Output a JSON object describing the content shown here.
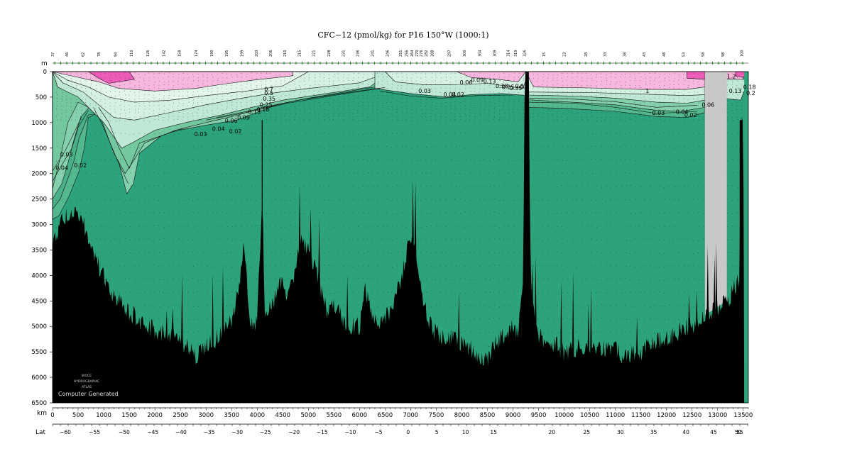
{
  "chart_data": {
    "type": "heatmap",
    "title": "CFC−12 (pmol/kg) for P16 150°W (1000:1)",
    "depth_axis": {
      "label": "m",
      "range": [
        0,
        6500
      ],
      "ticks": [
        "0",
        "500",
        "1000",
        "1500",
        "2000",
        "2500",
        "3000",
        "3500",
        "4000",
        "4500",
        "5000",
        "5500",
        "6000",
        "6500"
      ]
    },
    "distance_axis": {
      "label": "km",
      "range": [
        0,
        13600
      ],
      "ticks": [
        "0",
        "500",
        "1000",
        "1500",
        "2000",
        "2500",
        "3000",
        "3500",
        "4000",
        "4500",
        "5000",
        "5500",
        "6000",
        "6500",
        "7000",
        "7500",
        "8000",
        "8500",
        "9000",
        "9500",
        "10000",
        "10500",
        "11000",
        "11500",
        "12000",
        "12500",
        "13000",
        "13500"
      ]
    },
    "latitude_axis": {
      "label": "Lat",
      "ticks": [
        {
          "label": "−60",
          "km": 250
        },
        {
          "label": "−55",
          "km": 820
        },
        {
          "label": "−50",
          "km": 1400
        },
        {
          "label": "−45",
          "km": 1960
        },
        {
          "label": "−40",
          "km": 2510
        },
        {
          "label": "−35",
          "km": 3060
        },
        {
          "label": "−30",
          "km": 3610
        },
        {
          "label": "−25",
          "km": 4160
        },
        {
          "label": "−20",
          "km": 4720
        },
        {
          "label": "−15",
          "km": 5270
        },
        {
          "label": "−10",
          "km": 5820
        },
        {
          "label": "−5",
          "km": 6370
        },
        {
          "label": "0",
          "km": 6950
        },
        {
          "label": "5",
          "km": 7510
        },
        {
          "label": "10",
          "km": 8070
        },
        {
          "label": "15",
          "km": 8620
        },
        {
          "label": "20",
          "km": 9760
        },
        {
          "label": "25",
          "km": 10440
        },
        {
          "label": "30",
          "km": 11100
        },
        {
          "label": "35",
          "km": 11750
        },
        {
          "label": "40",
          "km": 12380
        },
        {
          "label": "45",
          "km": 12920
        },
        {
          "label": "50",
          "km": 13400
        },
        {
          "label": "55",
          "km": 14160
        }
      ]
    },
    "station_labels": [
      {
        "label": "37",
        "km": 0
      },
      {
        "label": "46",
        "km": 280
      },
      {
        "label": "62",
        "km": 590
      },
      {
        "label": "78",
        "km": 900
      },
      {
        "label": "94",
        "km": 1230
      },
      {
        "label": "110",
        "km": 1540
      },
      {
        "label": "126",
        "km": 1860
      },
      {
        "label": "142",
        "km": 2170
      },
      {
        "label": "158",
        "km": 2480
      },
      {
        "label": "174",
        "km": 2800
      },
      {
        "label": "190",
        "km": 3110
      },
      {
        "label": "195",
        "km": 3400
      },
      {
        "label": "199",
        "km": 3700
      },
      {
        "label": "203",
        "km": 3980
      },
      {
        "label": "206",
        "km": 4260
      },
      {
        "label": "210",
        "km": 4540
      },
      {
        "label": "215",
        "km": 4820
      },
      {
        "label": "221",
        "km": 5100
      },
      {
        "label": "228",
        "km": 5400
      },
      {
        "label": "231",
        "km": 5680
      },
      {
        "label": "236",
        "km": 5960
      },
      {
        "label": "241",
        "km": 6250
      },
      {
        "label": "246",
        "km": 6540
      },
      {
        "label": "251",
        "km": 6800
      },
      {
        "label": "256",
        "km": 6920
      },
      {
        "label": "264",
        "km": 7020
      },
      {
        "label": "270",
        "km": 7120
      },
      {
        "label": "276",
        "km": 7200
      },
      {
        "label": "282",
        "km": 7300
      },
      {
        "label": "288",
        "km": 7420
      },
      {
        "label": "297",
        "km": 7750
      },
      {
        "label": "300",
        "km": 8050
      },
      {
        "label": "304",
        "km": 8350
      },
      {
        "label": "309",
        "km": 8640
      },
      {
        "label": "314",
        "km": 8900
      },
      {
        "label": "319",
        "km": 9050
      },
      {
        "label": "326",
        "km": 9220
      },
      {
        "label": "15",
        "km": 9600
      },
      {
        "label": "23",
        "km": 10000
      },
      {
        "label": "28",
        "km": 10420
      },
      {
        "label": "33",
        "km": 10800
      },
      {
        "label": "38",
        "km": 11180
      },
      {
        "label": "43",
        "km": 11560
      },
      {
        "label": "48",
        "km": 11950
      },
      {
        "label": "53",
        "km": 12330
      },
      {
        "label": "58",
        "km": 12710
      },
      {
        "label": "98",
        "km": 13100
      },
      {
        "label": "100",
        "km": 13470
      }
    ],
    "contour_labels": [
      {
        "label": "0.04",
        "km": 60,
        "depth": 1930
      },
      {
        "label": "0.03",
        "km": 150,
        "depth": 1660
      },
      {
        "label": "0.02",
        "km": 420,
        "depth": 1880
      },
      {
        "label": "0.03",
        "km": 2770,
        "depth": 1270
      },
      {
        "label": "0.04",
        "km": 3120,
        "depth": 1160
      },
      {
        "label": "0.06",
        "km": 3370,
        "depth": 1000
      },
      {
        "label": "0.09",
        "km": 3610,
        "depth": 940
      },
      {
        "label": "0.13",
        "km": 3820,
        "depth": 830
      },
      {
        "label": "0.18",
        "km": 3990,
        "depth": 780
      },
      {
        "label": "0.25",
        "km": 4050,
        "depth": 690
      },
      {
        "label": "0.35",
        "km": 4110,
        "depth": 570
      },
      {
        "label": "0.5",
        "km": 4140,
        "depth": 460
      },
      {
        "label": "0.7",
        "km": 4140,
        "depth": 380
      },
      {
        "label": "0.02",
        "km": 3450,
        "depth": 1210
      },
      {
        "label": "0.03",
        "km": 7150,
        "depth": 420
      },
      {
        "label": "0.04",
        "km": 7640,
        "depth": 490
      },
      {
        "label": "0.02",
        "km": 7800,
        "depth": 490
      },
      {
        "label": "0.06",
        "km": 7960,
        "depth": 250
      },
      {
        "label": "0.09",
        "km": 8180,
        "depth": 200
      },
      {
        "label": "0.13",
        "km": 8420,
        "depth": 230
      },
      {
        "label": "0.18",
        "km": 8660,
        "depth": 320
      },
      {
        "label": "0.25",
        "km": 8780,
        "depth": 340
      },
      {
        "label": "0.35",
        "km": 8930,
        "depth": 360
      },
      {
        "label": "0.5",
        "km": 9040,
        "depth": 330
      },
      {
        "label": "0.7",
        "km": 9140,
        "depth": 330
      },
      {
        "label": "1",
        "km": 11590,
        "depth": 420
      },
      {
        "label": "0.03",
        "km": 11720,
        "depth": 850
      },
      {
        "label": "0.04",
        "km": 12180,
        "depth": 830
      },
      {
        "label": "0.02",
        "km": 12350,
        "depth": 890
      },
      {
        "label": "0.06",
        "km": 12690,
        "depth": 690
      },
      {
        "label": "1.2",
        "km": 13180,
        "depth": 130
      },
      {
        "label": "0.13",
        "km": 13220,
        "depth": 420
      },
      {
        "label": "0.18",
        "km": 13500,
        "depth": 340
      },
      {
        "label": "0.2",
        "km": 13560,
        "depth": 460
      }
    ],
    "colors": {
      "background": "#2ca37c",
      "band_light": "#bfe8d6",
      "band_mid": "#86d1ad",
      "band_green": "#55b98f",
      "high": "#f7b7de",
      "highest": "#ee5cb9",
      "bathymetry": "#000000",
      "no_data": "#c8c8c8"
    },
    "watermark": [
      "WOCE",
      "HYDROGRAPHIC",
      "ATLAS"
    ],
    "stamp": "Computer Generated"
  }
}
